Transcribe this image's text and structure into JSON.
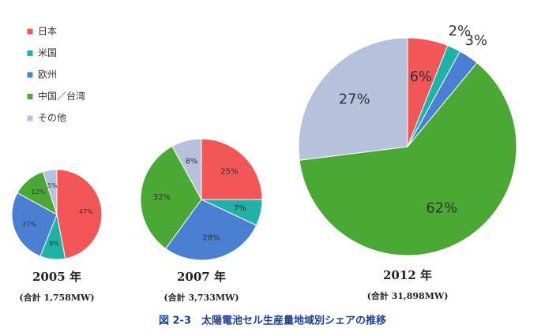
{
  "legend": {
    "categories": [
      "日本",
      "米国",
      "欧州",
      "中国／台湾",
      "その他"
    ],
    "colors": [
      "#f25656",
      "#1eb3a6",
      "#4a7fd2",
      "#4aa834",
      "#b6c1dc"
    ]
  },
  "chart_data": [
    {
      "type": "pie",
      "title": "2005 年",
      "subtitle": "(合計 1,758MW)",
      "values": [
        47,
        9,
        27,
        12,
        5
      ],
      "value_labels": [
        "47%",
        "9%",
        "27%",
        "12%",
        "5%"
      ]
    },
    {
      "type": "pie",
      "title": "2007 年",
      "subtitle": "(合計 3,733MW)",
      "values": [
        25,
        7,
        28,
        32,
        8
      ],
      "value_labels": [
        "25%",
        "7%",
        "28%",
        "32%",
        "8%"
      ]
    },
    {
      "type": "pie",
      "title": "2012 年",
      "subtitle": "(合計 31,898MW)",
      "values": [
        6,
        2,
        3,
        62,
        27
      ],
      "value_labels": [
        "6%",
        "2%",
        "3%",
        "62%",
        "27%"
      ]
    }
  ],
  "caption": "図 2-3　太陽電池セル生産量地域別シェアの推移"
}
